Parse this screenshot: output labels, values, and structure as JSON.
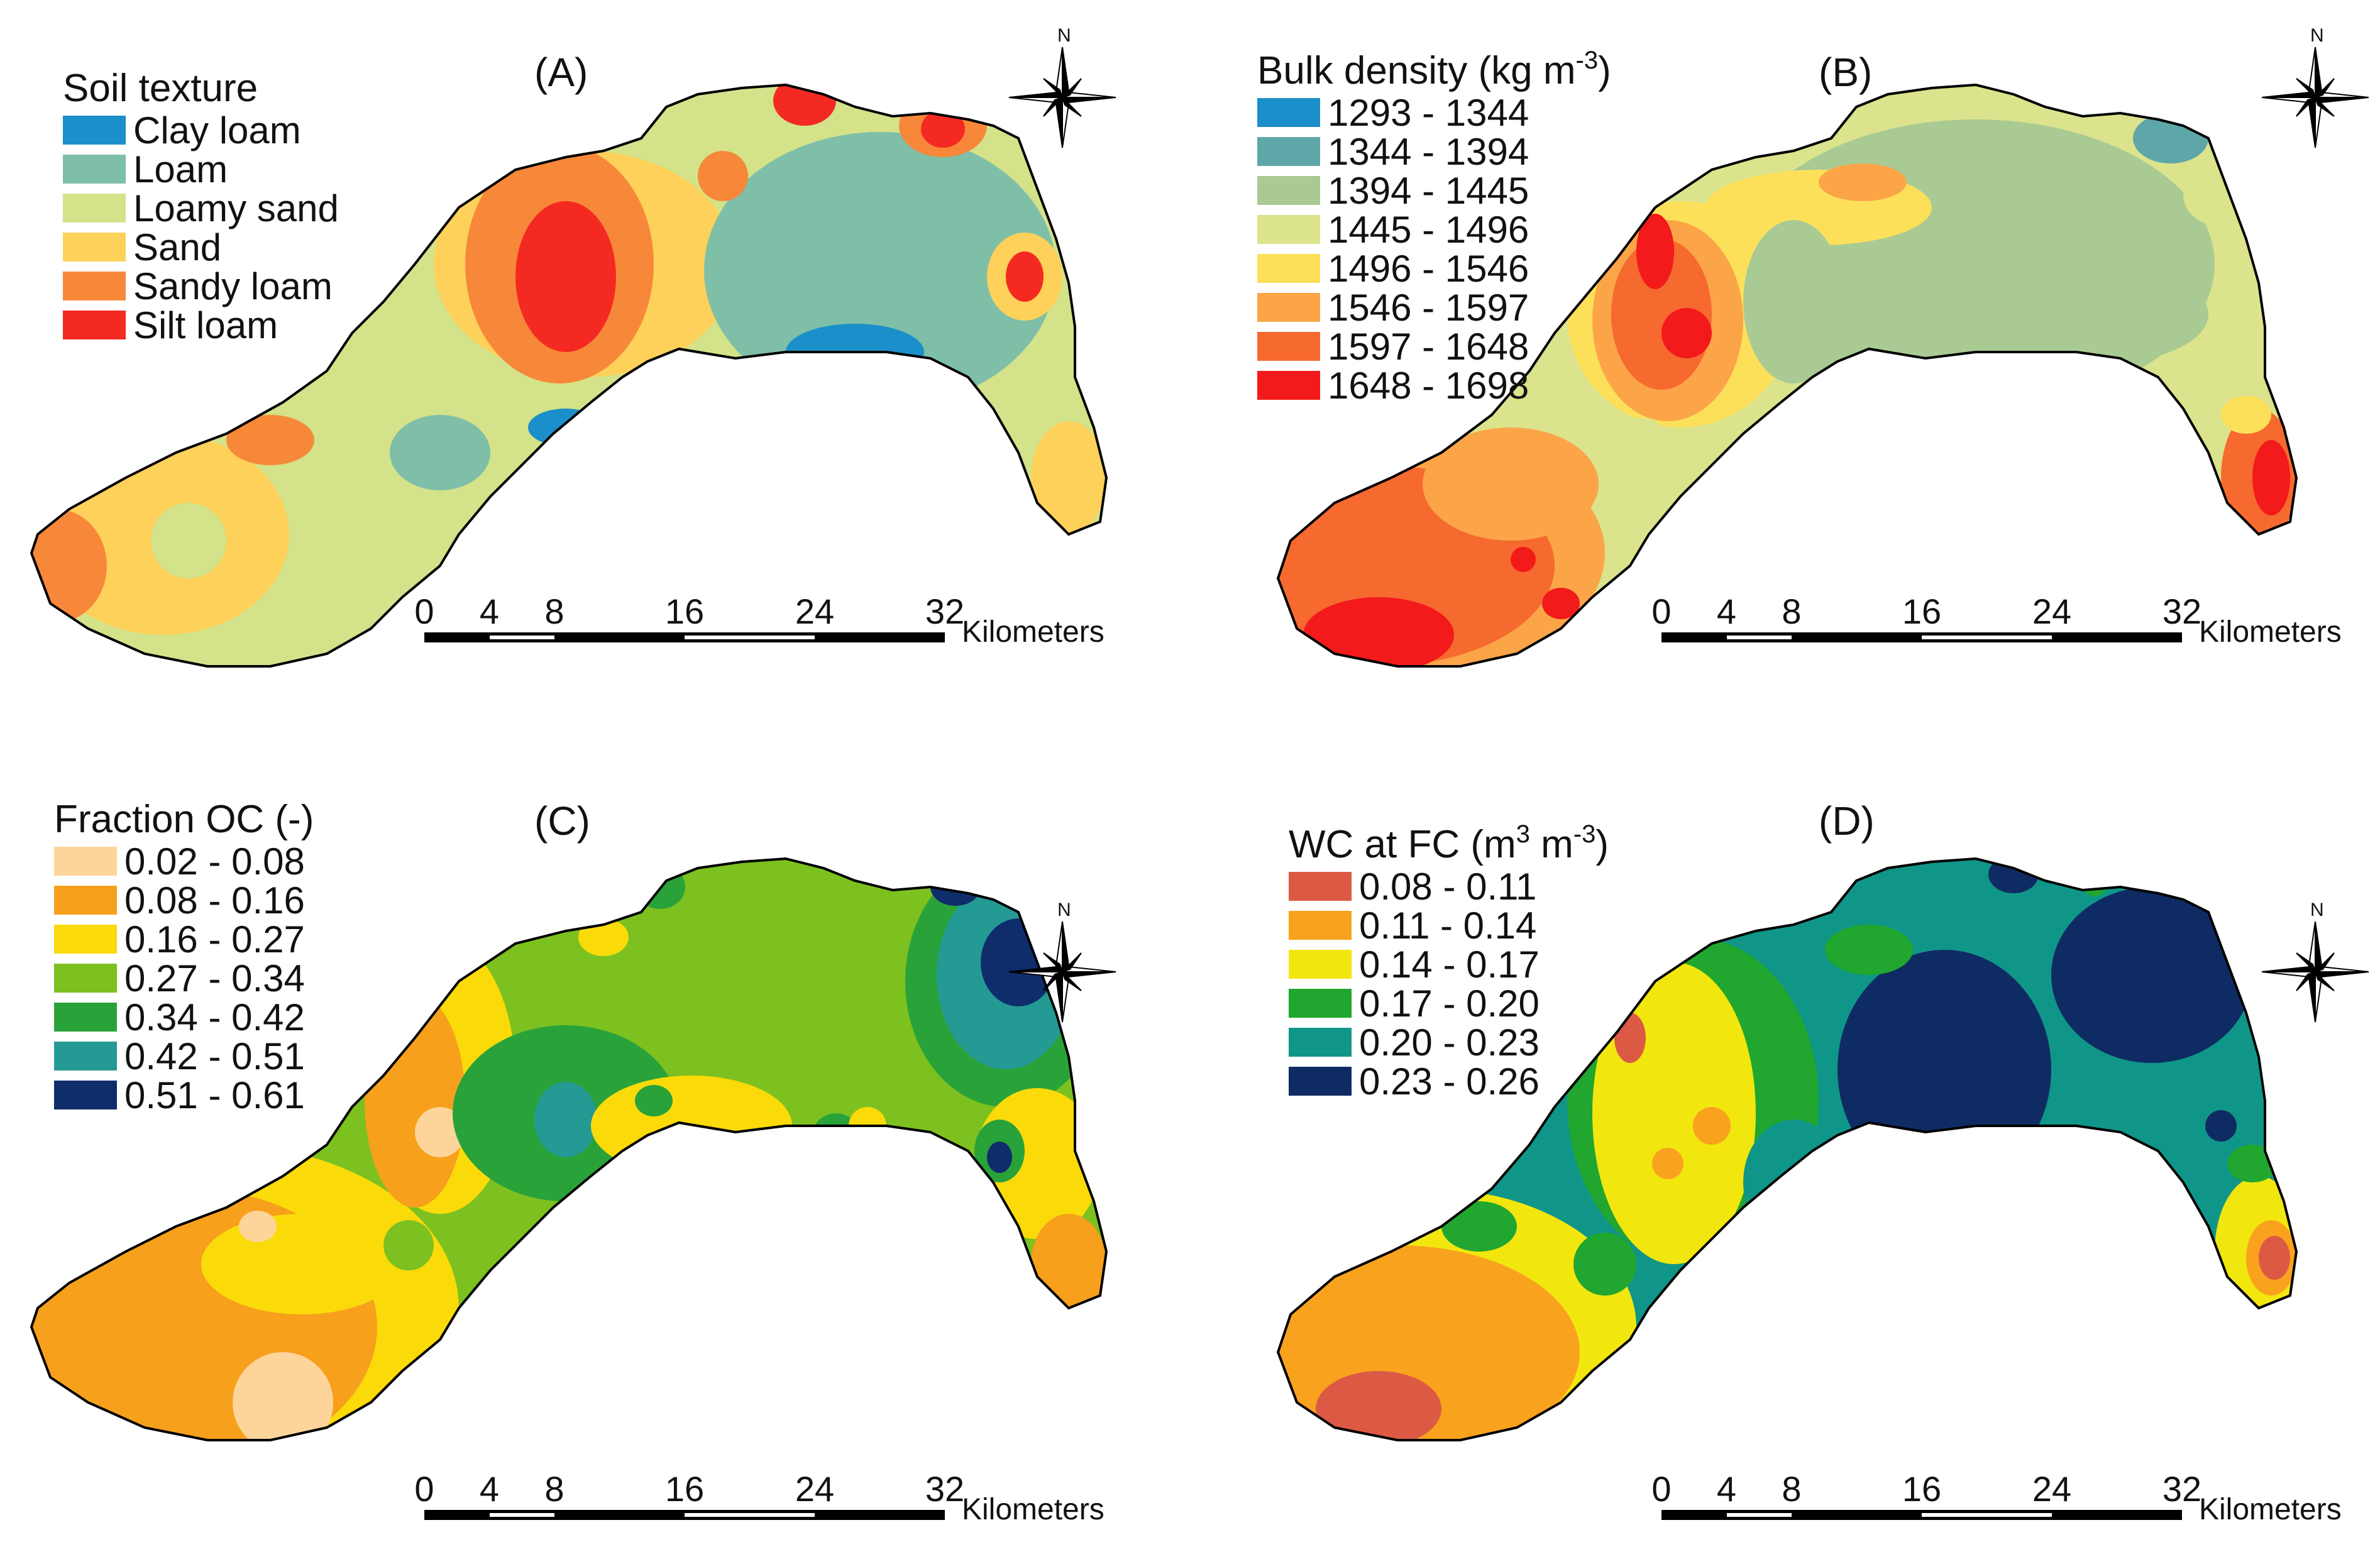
{
  "panels": [
    {
      "id": "A",
      "label": "(A)",
      "legend_title": "Soil texture",
      "classes": [
        {
          "label": "Clay loam",
          "color": "#1b8fc9"
        },
        {
          "label": "Loam",
          "color": "#7fbfa8"
        },
        {
          "label": "Loamy sand",
          "color": "#d4e28a"
        },
        {
          "label": "Sand",
          "color": "#fdd15a"
        },
        {
          "label": "Sandy loam",
          "color": "#f7883a"
        },
        {
          "label": "Silt loam",
          "color": "#f42a22"
        }
      ]
    },
    {
      "id": "B",
      "label": "(B)",
      "legend_title": "Bulk density (kg m",
      "legend_title_sup": "-3",
      "legend_title_end": ")",
      "classes": [
        {
          "label": "1293 - 1344",
          "color": "#1b8fc9"
        },
        {
          "label": "1344 - 1394",
          "color": "#5fa6a8"
        },
        {
          "label": "1394 - 1445",
          "color": "#a9cb93"
        },
        {
          "label": "1445 - 1496",
          "color": "#dbe38c"
        },
        {
          "label": "1496 - 1546",
          "color": "#fde05a"
        },
        {
          "label": "1546 - 1597",
          "color": "#fba548"
        },
        {
          "label": "1597 - 1648",
          "color": "#f6692f"
        },
        {
          "label": "1648 - 1698",
          "color": "#f21a1a"
        }
      ]
    },
    {
      "id": "C",
      "label": "(C)",
      "legend_title": "Fraction OC (-)",
      "classes": [
        {
          "label": "0.02 - 0.08",
          "color": "#fdd59a"
        },
        {
          "label": "0.08 - 0.16",
          "color": "#f7a01c"
        },
        {
          "label": "0.16 - 0.27",
          "color": "#fbda0a"
        },
        {
          "label": "0.27 - 0.34",
          "color": "#7cc11f"
        },
        {
          "label": "0.34 - 0.42",
          "color": "#2aa23a"
        },
        {
          "label": "0.42 - 0.51",
          "color": "#249a94"
        },
        {
          "label": "0.51 - 0.61",
          "color": "#0f2d6b"
        }
      ]
    },
    {
      "id": "D",
      "label": "(D)",
      "legend_title": "WC at FC (m",
      "legend_title_sup": "3",
      "legend_title_mid": " m",
      "legend_title_sup2": "-3",
      "legend_title_end": ")",
      "classes": [
        {
          "label": "0.08 - 0.11",
          "color": "#dc5a44"
        },
        {
          "label": "0.11 - 0.14",
          "color": "#f9a21e"
        },
        {
          "label": "0.14 - 0.17",
          "color": "#f2e60f"
        },
        {
          "label": "0.17 - 0.20",
          "color": "#21a62f"
        },
        {
          "label": "0.20 - 0.23",
          "color": "#0f9688"
        },
        {
          "label": "0.23 - 0.26",
          "color": "#0f2b63"
        }
      ]
    }
  ],
  "scale": {
    "ticks": [
      "0",
      "4",
      "8",
      "16",
      "24",
      "32"
    ],
    "tick_km": [
      0,
      4,
      8,
      16,
      24,
      32
    ],
    "unit": "Kilometers"
  },
  "compass": {
    "north_label": "N"
  }
}
